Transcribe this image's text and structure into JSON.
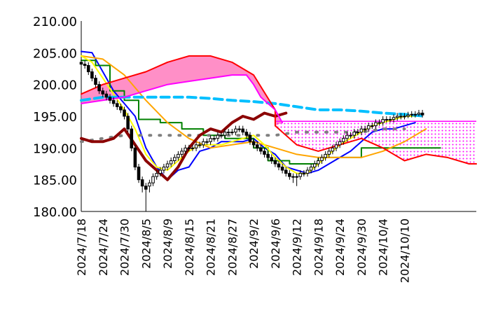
{
  "chart_data": {
    "type": "line",
    "title": "",
    "xlabel": "",
    "ylabel": "",
    "ylim": [
      180,
      210
    ],
    "y_ticks": [
      "180.00",
      "185.00",
      "190.00",
      "195.00",
      "200.00",
      "205.00",
      "210.00"
    ],
    "x_tick_labels": [
      "2024/7/18",
      "2024/7/24",
      "2024/7/30",
      "2024/8/5",
      "2024/8/9",
      "2024/8/15",
      "2024/8/21",
      "2024/8/27",
      "2024/9/2",
      "2024/9/6",
      "2024/9/12",
      "2024/9/18",
      "2024/9/24",
      "2024/9/30",
      "2024/10/4",
      "2024/10/10"
    ],
    "grid": false,
    "legend": "none",
    "x_domain": [
      0,
      110
    ],
    "tick_positions": [
      0,
      6,
      12,
      18,
      24,
      30,
      36,
      42,
      48,
      54,
      60,
      66,
      72,
      78,
      84,
      90
    ],
    "series": [
      {
        "color": "#0000FF",
        "x": [
          0,
          3,
          6,
          9,
          12,
          15,
          18,
          21,
          24,
          27,
          30,
          33,
          36,
          39,
          42,
          45,
          48,
          51,
          54,
          57,
          60,
          63,
          66,
          69,
          72,
          75,
          78,
          81,
          84,
          87,
          90,
          93
        ],
        "values": [
          205.2,
          205.0,
          202.0,
          199.0,
          197.0,
          195.0,
          190.0,
          187.0,
          185.0,
          186.5,
          187.0,
          189.5,
          190.0,
          191.0,
          191.0,
          191.0,
          191.5,
          190.0,
          189.0,
          187.0,
          186.5,
          186.0,
          186.5,
          187.5,
          188.5,
          189.5,
          191.0,
          192.5,
          193.0,
          193.0,
          193.5,
          194.0
        ]
      },
      {
        "color": "#008000",
        "x": [
          0,
          4,
          4,
          8,
          8,
          12,
          12,
          16,
          16,
          22,
          22,
          28,
          28,
          34,
          34,
          40,
          40,
          48,
          48,
          52,
          52,
          58,
          58,
          66,
          66,
          78,
          78,
          84,
          84,
          92,
          92,
          96,
          96,
          100
        ],
        "values": [
          203.8,
          203.8,
          203.0,
          203.0,
          199.0,
          199.0,
          197.5,
          197.5,
          194.5,
          194.5,
          194.0,
          194.0,
          193.0,
          193.0,
          192.0,
          192.0,
          191.5,
          191.5,
          190.0,
          190.0,
          188.0,
          188.0,
          187.5,
          187.5,
          188.5,
          188.5,
          190.0,
          190.0,
          190.0,
          190.0,
          190.0,
          190.0,
          190.0,
          190.0
        ]
      },
      {
        "color": "#FFA500",
        "x": [
          0,
          6,
          12,
          18,
          24,
          30,
          36,
          42,
          48,
          54,
          60,
          66,
          72,
          78,
          84,
          90,
          96
        ],
        "values": [
          204.5,
          204.0,
          201.5,
          197.5,
          194.0,
          191.5,
          190.0,
          190.5,
          191.0,
          190.0,
          189.0,
          188.5,
          188.5,
          188.5,
          189.5,
          191.0,
          193.0
        ]
      },
      {
        "color": "#FFFF00",
        "x": [
          0,
          3,
          6,
          9,
          12,
          15,
          18,
          21,
          24,
          27,
          30,
          33,
          36,
          39,
          42,
          45,
          48,
          51,
          54,
          57,
          60,
          63,
          66,
          69,
          72,
          75,
          78,
          81,
          84,
          87,
          90,
          93
        ],
        "values": [
          204.5,
          203.5,
          201.0,
          198.5,
          196.0,
          193.0,
          189.0,
          187.0,
          186.5,
          188.0,
          189.5,
          190.5,
          190.5,
          190.5,
          191.0,
          191.5,
          192.0,
          190.5,
          188.5,
          187.0,
          186.0,
          186.0,
          187.5,
          189.0,
          190.5,
          191.5,
          192.5,
          193.5,
          194.0,
          194.5,
          195.0,
          195.0
        ]
      },
      {
        "color": "#00BFFF",
        "x": [
          0,
          6,
          12,
          18,
          24,
          30,
          36,
          42,
          48,
          54,
          60,
          66,
          72,
          78,
          84,
          90,
          96
        ],
        "values": [
          197.5,
          198.0,
          198.0,
          198.0,
          198.0,
          198.0,
          197.8,
          197.5,
          197.3,
          197.0,
          196.5,
          196.0,
          196.0,
          195.8,
          195.5,
          195.3,
          195.0
        ]
      },
      {
        "color": "#808080",
        "x": [
          0,
          6,
          12,
          18,
          24,
          30,
          36,
          42,
          48,
          54,
          60,
          66,
          72,
          78,
          84,
          90
        ],
        "values": [
          191.0,
          191.5,
          192.0,
          192.0,
          192.0,
          192.0,
          192.0,
          192.0,
          192.0,
          192.0,
          192.5,
          192.5,
          192.5,
          192.5,
          193.0,
          193.0
        ]
      },
      {
        "color": "#8B0000",
        "x": [
          0,
          3,
          6,
          9,
          12,
          15,
          18,
          21,
          24,
          27,
          30,
          33,
          36,
          39,
          42,
          45,
          48,
          51,
          54,
          57
        ],
        "values": [
          191.5,
          191.0,
          191.0,
          191.5,
          193.0,
          190.5,
          188.0,
          186.5,
          185.0,
          187.0,
          190.0,
          192.0,
          193.0,
          192.5,
          194.0,
          195.0,
          194.5,
          195.5,
          195.0,
          195.5
        ]
      },
      {
        "color": "#FF0000",
        "x": [
          0,
          6,
          12,
          18,
          24,
          30,
          36,
          42,
          48,
          54,
          54,
          60,
          66,
          72,
          78,
          84,
          90,
          96,
          102,
          108,
          110
        ],
        "values": [
          198.5,
          200.0,
          201.0,
          202.0,
          203.5,
          204.5,
          204.5,
          203.5,
          201.5,
          196.0,
          193.5,
          190.5,
          189.5,
          190.5,
          191.5,
          190.0,
          188.0,
          189.0,
          188.5,
          187.5,
          187.5
        ]
      },
      {
        "color": "#FF00FF",
        "x": [
          0,
          6,
          12,
          18,
          24,
          30,
          36,
          42,
          46,
          48,
          50,
          54,
          56
        ],
        "values": [
          197.0,
          197.5,
          198.0,
          199.0,
          200.0,
          200.5,
          201.0,
          201.5,
          201.5,
          200.0,
          198.0,
          196.0,
          194.0
        ]
      }
    ],
    "candles": {
      "x": [
        0,
        1,
        2,
        3,
        4,
        5,
        6,
        7,
        8,
        9,
        10,
        11,
        12,
        13,
        14,
        15,
        16,
        17,
        18,
        19,
        20,
        21,
        22,
        23,
        24,
        25,
        26,
        27,
        28,
        29,
        30,
        31,
        32,
        33,
        34,
        35,
        36,
        37,
        38,
        39,
        40,
        41,
        42,
        43,
        44,
        45,
        46,
        47,
        48,
        49,
        50,
        51,
        52,
        53,
        54,
        55,
        56,
        57,
        58,
        59,
        60,
        61,
        62,
        63,
        64,
        65,
        66,
        67,
        68,
        69,
        70,
        71,
        72,
        73,
        74,
        75,
        76,
        77,
        78,
        79,
        80,
        81,
        82,
        83,
        84,
        85,
        86,
        87,
        88,
        89,
        90,
        91,
        92,
        93,
        94,
        95
      ],
      "open": [
        203.5,
        203.2,
        203.0,
        202.0,
        201.0,
        200.0,
        199.0,
        198.5,
        198.0,
        197.5,
        197.0,
        196.5,
        196.0,
        195.0,
        193.0,
        190.0,
        187.0,
        185.0,
        184.0,
        184.0,
        184.5,
        185.5,
        186.0,
        186.5,
        187.0,
        187.5,
        188.0,
        188.5,
        189.0,
        189.5,
        190.0,
        190.0,
        190.0,
        190.5,
        190.5,
        191.0,
        191.0,
        191.5,
        191.5,
        192.0,
        192.0,
        192.5,
        192.5,
        192.5,
        193.0,
        193.0,
        192.5,
        192.0,
        191.0,
        190.5,
        190.0,
        189.5,
        189.0,
        188.5,
        188.0,
        187.5,
        187.0,
        186.5,
        186.0,
        185.5,
        185.5,
        185.5,
        186.0,
        186.0,
        186.5,
        187.0,
        187.5,
        188.0,
        188.5,
        189.0,
        189.5,
        190.0,
        190.5,
        191.0,
        191.5,
        192.0,
        192.0,
        192.5,
        192.5,
        193.0,
        193.0,
        193.5,
        193.5,
        194.0,
        194.0,
        194.5,
        194.5,
        194.5,
        194.8,
        195.0,
        195.0,
        195.0,
        195.2,
        195.3,
        195.3,
        195.5
      ],
      "close": [
        203.2,
        203.0,
        202.0,
        201.0,
        200.0,
        199.0,
        198.5,
        198.0,
        197.5,
        197.0,
        196.5,
        196.0,
        195.0,
        193.0,
        190.0,
        187.0,
        185.0,
        184.0,
        183.5,
        184.5,
        185.5,
        186.0,
        186.5,
        187.0,
        187.5,
        188.0,
        188.5,
        189.0,
        189.5,
        190.0,
        190.0,
        190.0,
        190.5,
        190.5,
        191.0,
        191.0,
        191.5,
        191.5,
        192.0,
        192.0,
        192.5,
        192.5,
        192.5,
        193.0,
        193.0,
        192.5,
        192.0,
        191.0,
        190.5,
        190.0,
        189.5,
        189.0,
        188.5,
        188.0,
        187.5,
        187.0,
        186.5,
        186.0,
        185.5,
        185.5,
        185.5,
        186.0,
        186.0,
        186.5,
        187.0,
        187.5,
        188.0,
        188.5,
        189.0,
        189.5,
        190.0,
        190.5,
        191.0,
        191.5,
        192.0,
        192.0,
        192.5,
        192.5,
        193.0,
        193.0,
        193.5,
        193.5,
        194.0,
        194.0,
        194.5,
        194.5,
        194.5,
        194.8,
        195.0,
        195.0,
        195.0,
        195.2,
        195.3,
        195.3,
        195.5,
        195.2
      ],
      "high": [
        204.0,
        203.8,
        203.5,
        202.5,
        201.5,
        200.5,
        199.5,
        199.0,
        198.5,
        198.0,
        197.5,
        197.0,
        196.5,
        195.5,
        193.5,
        190.5,
        187.5,
        185.5,
        184.5,
        185.0,
        186.0,
        186.5,
        187.0,
        187.5,
        188.0,
        188.5,
        189.0,
        189.5,
        190.0,
        190.5,
        190.5,
        190.5,
        191.0,
        191.0,
        191.5,
        191.5,
        192.0,
        192.0,
        192.5,
        192.5,
        193.0,
        193.0,
        193.0,
        193.5,
        193.5,
        193.5,
        193.0,
        192.5,
        191.5,
        191.0,
        190.5,
        190.0,
        189.5,
        189.0,
        188.5,
        188.0,
        187.5,
        187.0,
        186.5,
        186.0,
        186.0,
        186.5,
        186.5,
        187.0,
        187.5,
        188.0,
        188.5,
        189.0,
        189.5,
        190.0,
        190.5,
        191.0,
        191.5,
        192.0,
        192.5,
        192.5,
        193.0,
        193.0,
        193.5,
        193.5,
        194.0,
        194.0,
        194.5,
        194.5,
        195.0,
        195.0,
        195.0,
        195.3,
        195.5,
        195.5,
        195.5,
        195.7,
        195.8,
        195.8,
        196.0,
        196.0
      ],
      "low": [
        202.5,
        202.5,
        201.5,
        200.5,
        199.5,
        198.5,
        198.0,
        197.5,
        197.0,
        196.5,
        196.0,
        195.5,
        194.5,
        192.5,
        189.5,
        186.5,
        184.5,
        183.0,
        180.0,
        183.0,
        184.0,
        185.0,
        185.5,
        186.0,
        186.5,
        187.0,
        187.5,
        188.0,
        188.5,
        189.0,
        189.5,
        189.5,
        189.5,
        190.0,
        190.0,
        190.5,
        190.5,
        191.0,
        191.0,
        191.5,
        191.5,
        192.0,
        192.0,
        192.0,
        192.5,
        192.0,
        191.5,
        190.5,
        190.0,
        189.5,
        189.0,
        188.5,
        188.0,
        187.5,
        187.0,
        186.5,
        186.0,
        185.5,
        185.0,
        184.5,
        184.0,
        185.0,
        185.5,
        185.5,
        186.0,
        186.5,
        187.0,
        187.5,
        188.0,
        188.5,
        189.0,
        189.5,
        190.0,
        190.5,
        191.0,
        191.5,
        191.5,
        192.0,
        192.0,
        192.5,
        192.5,
        193.0,
        193.0,
        193.5,
        193.5,
        194.0,
        194.0,
        194.0,
        194.3,
        194.5,
        194.5,
        194.7,
        194.8,
        194.8,
        195.0,
        194.8
      ]
    }
  }
}
